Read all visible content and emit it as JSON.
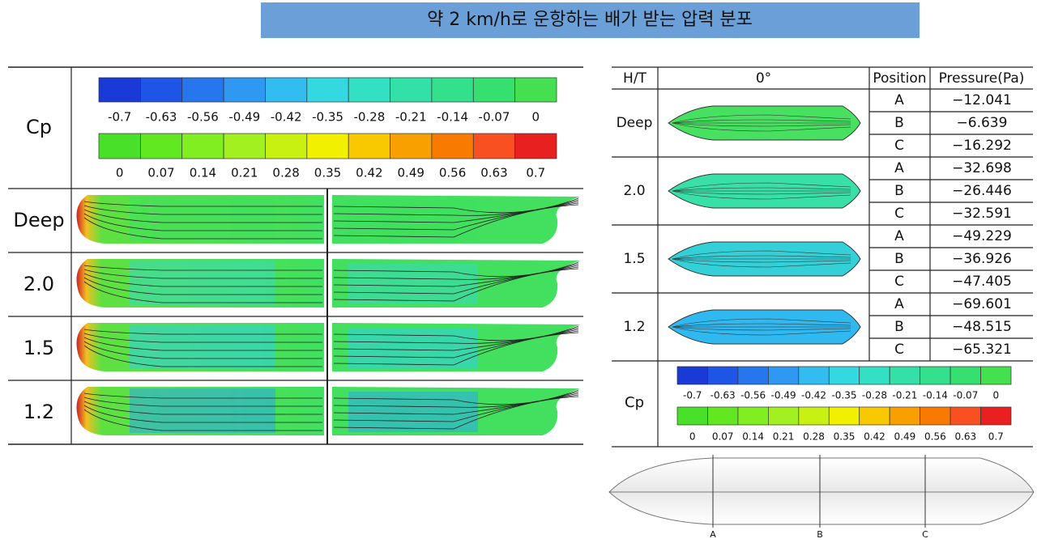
{
  "title": "약 2 km/h로 운항하는 배가 받는 압력 분포",
  "cp_scale": {
    "label": "Cp",
    "negative": [
      "-0.7",
      "-0.63",
      "-0.56",
      "-0.49",
      "-0.42",
      "-0.35",
      "-0.28",
      "-0.21",
      "-0.14",
      "-0.07",
      "0"
    ],
    "positive": [
      "0",
      "0.07",
      "0.14",
      "0.21",
      "0.28",
      "0.35",
      "0.42",
      "0.49",
      "0.56",
      "0.63",
      "0.7"
    ]
  },
  "left_table": {
    "rows": [
      "Deep",
      "2.0",
      "1.5",
      "1.2"
    ]
  },
  "right_table": {
    "headers": [
      "H/T",
      "0°",
      "Position",
      "Pressure(Pa)"
    ],
    "rows": [
      {
        "label": "Deep",
        "positions": [
          "A",
          "B",
          "C"
        ],
        "pressures": [
          "−12.041",
          "−6.639",
          "−16.292"
        ]
      },
      {
        "label": "2.0",
        "positions": [
          "A",
          "B",
          "C"
        ],
        "pressures": [
          "−32.698",
          "−26.446",
          "−32.591"
        ]
      },
      {
        "label": "1.5",
        "positions": [
          "A",
          "B",
          "C"
        ],
        "pressures": [
          "−49.229",
          "−36.926",
          "−47.405"
        ]
      },
      {
        "label": "1.2",
        "positions": [
          "A",
          "B",
          "C"
        ],
        "pressures": [
          "−69.601",
          "−48.515",
          "−65.321"
        ]
      }
    ]
  },
  "hull_sections": [
    "A",
    "B",
    "C"
  ]
}
